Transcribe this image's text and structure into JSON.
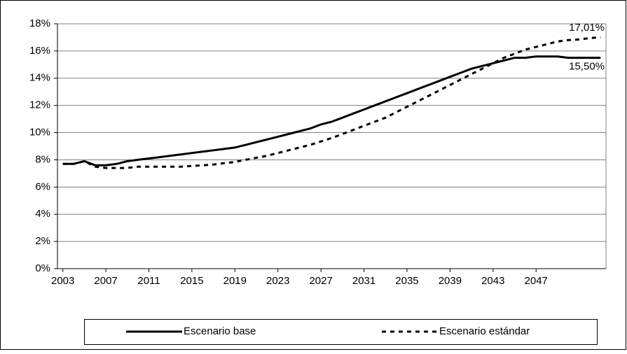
{
  "chart_data": {
    "type": "line",
    "x": [
      2003,
      2004,
      2005,
      2006,
      2007,
      2008,
      2009,
      2010,
      2011,
      2012,
      2013,
      2014,
      2015,
      2016,
      2017,
      2018,
      2019,
      2020,
      2021,
      2022,
      2023,
      2024,
      2025,
      2026,
      2027,
      2028,
      2029,
      2030,
      2031,
      2032,
      2033,
      2034,
      2035,
      2036,
      2037,
      2038,
      2039,
      2040,
      2041,
      2042,
      2043,
      2044,
      2045,
      2046,
      2047,
      2048,
      2049,
      2050,
      2051,
      2052,
      2053
    ],
    "series": [
      {
        "name": "Escenario base",
        "color": "#000000",
        "dash": "solid",
        "values": [
          7.7,
          7.7,
          7.9,
          7.6,
          7.6,
          7.7,
          7.9,
          8.0,
          8.1,
          8.2,
          8.3,
          8.4,
          8.5,
          8.6,
          8.7,
          8.8,
          8.9,
          9.1,
          9.3,
          9.5,
          9.7,
          9.9,
          10.1,
          10.3,
          10.6,
          10.8,
          11.1,
          11.4,
          11.7,
          12.0,
          12.3,
          12.6,
          12.9,
          13.2,
          13.5,
          13.8,
          14.1,
          14.4,
          14.7,
          14.9,
          15.1,
          15.3,
          15.5,
          15.5,
          15.6,
          15.6,
          15.6,
          15.5,
          15.5,
          15.5,
          15.5
        ],
        "end_label": "15,50%"
      },
      {
        "name": "Escenario estándar",
        "color": "#000000",
        "dash": "dashed",
        "values": [
          7.7,
          7.7,
          7.9,
          7.5,
          7.4,
          7.4,
          7.4,
          7.5,
          7.5,
          7.5,
          7.5,
          7.5,
          7.55,
          7.6,
          7.65,
          7.75,
          7.85,
          8.0,
          8.15,
          8.3,
          8.5,
          8.7,
          8.9,
          9.1,
          9.35,
          9.6,
          9.9,
          10.2,
          10.5,
          10.8,
          11.1,
          11.5,
          11.9,
          12.3,
          12.7,
          13.1,
          13.5,
          13.9,
          14.3,
          14.7,
          15.1,
          15.5,
          15.8,
          16.1,
          16.3,
          16.5,
          16.7,
          16.8,
          16.85,
          16.95,
          17.01
        ],
        "end_label": "17,01%"
      }
    ],
    "xlim": [
      2002.5,
      2053.5
    ],
    "xticks": [
      2003,
      2007,
      2011,
      2015,
      2019,
      2023,
      2027,
      2031,
      2035,
      2039,
      2043,
      2047
    ],
    "ylim": [
      0,
      18
    ],
    "yticks": [
      {
        "value": 0,
        "label": "0%"
      },
      {
        "value": 2,
        "label": "2%"
      },
      {
        "value": 4,
        "label": "4%"
      },
      {
        "value": 6,
        "label": "6%"
      },
      {
        "value": 8,
        "label": "8%"
      },
      {
        "value": 10,
        "label": "10%"
      },
      {
        "value": 12,
        "label": "12%"
      },
      {
        "value": 14,
        "label": "14%"
      },
      {
        "value": 16,
        "label": "16%"
      },
      {
        "value": 18,
        "label": "18%"
      }
    ],
    "grid": true,
    "legend": "bottom"
  }
}
